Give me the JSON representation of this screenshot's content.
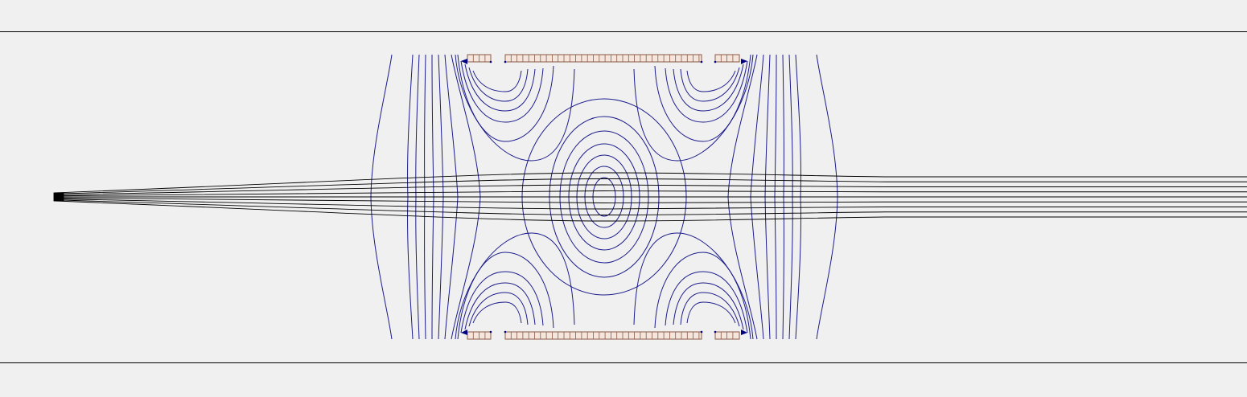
{
  "view": {
    "type": "electrostatic-lens-simulation",
    "background_color": "#f0f0f0",
    "boundary_line_color": "#000000",
    "equipotential_color": "#1c1c8c",
    "beam_color": "#000000",
    "electrode_fill_color": "#f4e6dc",
    "electrode_stroke_color": "#8c5a46",
    "electrode_tip_color": "#000080"
  },
  "lens": {
    "electrodes": [
      "left-ring-top",
      "central-cylinder-top",
      "right-ring-top",
      "left-ring-bottom",
      "central-cylinder-bottom",
      "right-ring-bottom"
    ],
    "equipotential_contour_count": 30,
    "beam_ray_count": 9
  }
}
